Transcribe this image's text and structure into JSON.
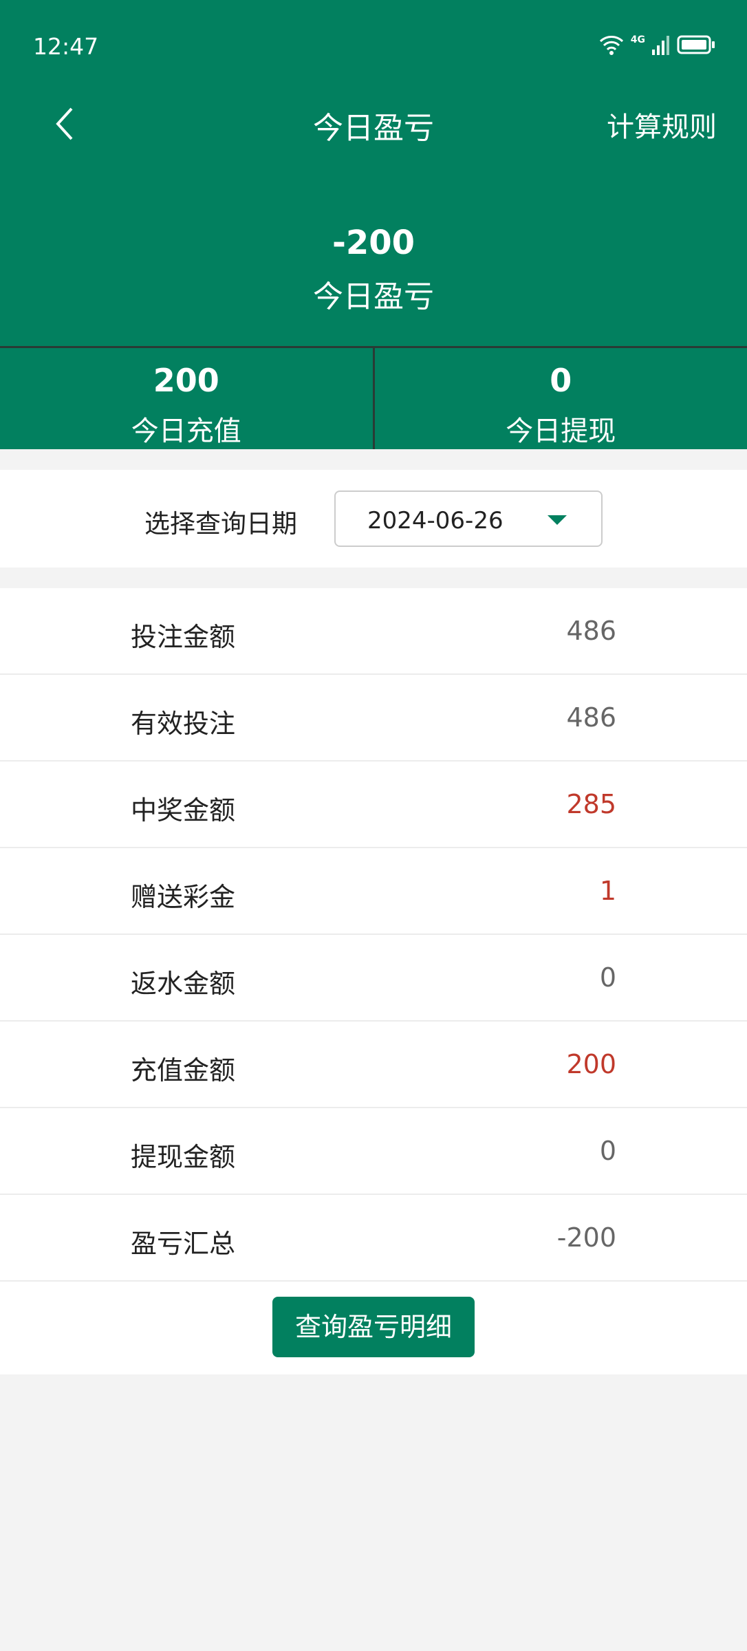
{
  "status_bar": {
    "time": "12:47",
    "network": "4G",
    "icons": [
      "wifi-icon",
      "signal-icon",
      "battery-icon"
    ]
  },
  "header": {
    "title": "今日盈亏",
    "rules_label": "计算规则",
    "back_icon": "chevron-left-icon"
  },
  "summary": {
    "value": "-200",
    "label": "今日盈亏"
  },
  "stats": [
    {
      "value": "200",
      "label": "今日充值"
    },
    {
      "value": "0",
      "label": "今日提现"
    }
  ],
  "date_filter": {
    "label": "选择查询日期",
    "value": "2024-06-26"
  },
  "rows": [
    {
      "label": "投注金额",
      "value": "486",
      "color": "#666666"
    },
    {
      "label": "有效投注",
      "value": "486",
      "color": "#666666"
    },
    {
      "label": "中奖金额",
      "value": "285",
      "color": "#c0392b"
    },
    {
      "label": "赠送彩金",
      "value": "1",
      "color": "#c0392b"
    },
    {
      "label": "返水金额",
      "value": "0",
      "color": "#666666"
    },
    {
      "label": "充值金额",
      "value": "200",
      "color": "#c0392b"
    },
    {
      "label": "提现金额",
      "value": "0",
      "color": "#666666"
    },
    {
      "label": "盈亏汇总",
      "value": "-200",
      "color": "#666666"
    }
  ],
  "detail_button": "查询盈亏明细",
  "colors": {
    "brand": "#02805f",
    "negative_red": "#c0392b"
  }
}
